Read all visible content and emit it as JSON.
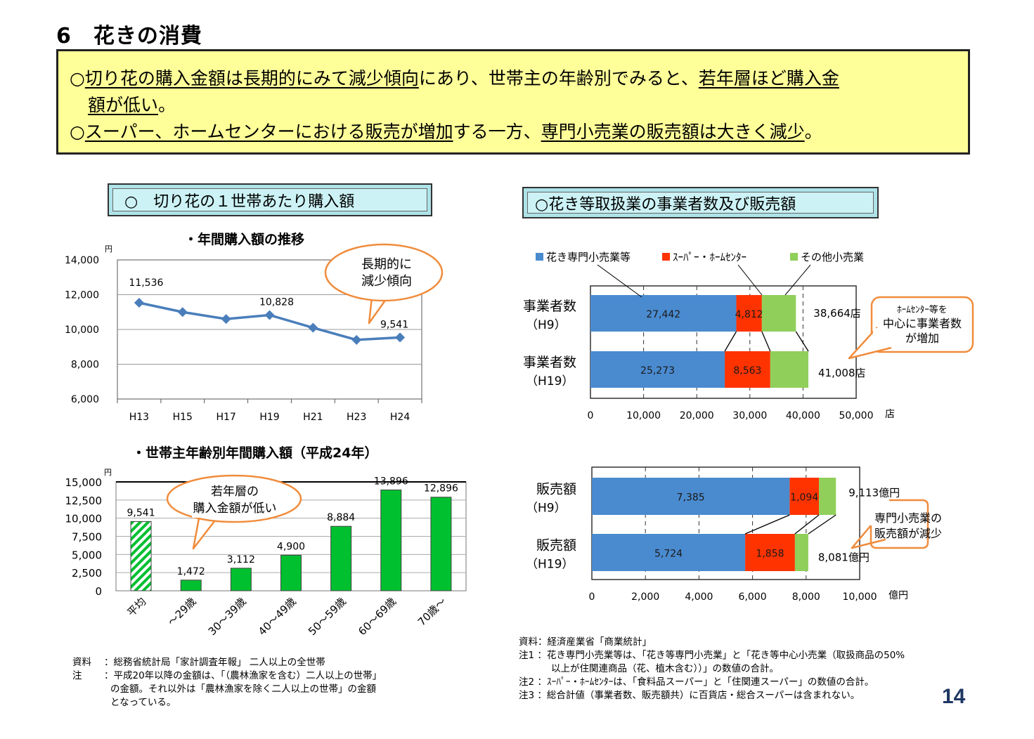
{
  "page": {
    "title": "6　花きの消費",
    "page_number": "14"
  },
  "summary": {
    "line1": [
      {
        "text": "○",
        "u": false
      },
      {
        "text": "切り花の購入金額は長期的にみて減少傾向",
        "u": true
      },
      {
        "text": "にあり、世帯主の年齢別でみると、",
        "u": false
      },
      {
        "text": "若年層ほど購入金",
        "u": true
      }
    ],
    "line2": [
      {
        "text": "額が低い",
        "u": true
      },
      {
        "text": "。",
        "u": false
      }
    ],
    "line3": [
      {
        "text": "○",
        "u": false
      },
      {
        "text": "スーパー、ホームセンターにおける販売が増加",
        "u": true
      },
      {
        "text": "する一方、",
        "u": false
      },
      {
        "text": "専門小売業の販売額は大きく減少",
        "u": true
      },
      {
        "text": "。",
        "u": false
      }
    ]
  },
  "left_section": {
    "heading": "○　切り花の１世帯あたり購入額",
    "source_label": "資料",
    "source_text": "：総務省統計局「家計調査年報」 二人以上の全世帯",
    "note_label": "注",
    "note_lines": [
      "：平成20年以降の金額は、「（農林漁家を含む）二人以上の世帯」",
      "の金額。それ以外は「農林漁家を除く二人以上の世帯」の金額",
      "となっている。"
    ]
  },
  "right_section": {
    "heading": "○花き等取扱業の事業者数及び販売額",
    "source_line": "資料：経済産業省「商業統計」",
    "notes": [
      "注1 ：花き専門小売業等は、「花き等専門小売業」と「花き等中心小売業（取扱商品の50%",
      "以上が住関連商品（花、植木含む））」の数値の合計。",
      "注2 ：ｽｰﾊﾟｰ・ﾎｰﾑｾﾝﾀｰは、「食料品スーパー」と「住関連スーパー」の数値の合計。",
      "注3 ：総合計値（事業者数、販売額共）に百貨店・総合スーパーは含まれない。"
    ]
  },
  "chart_data": [
    {
      "type": "line",
      "title": "・年間購入額の推移",
      "ylabel": "円",
      "categories": [
        "H13",
        "H15",
        "H17",
        "H19",
        "H21",
        "H23",
        "H24"
      ],
      "values": [
        11536,
        11000,
        10600,
        10828,
        10100,
        9400,
        9541
      ],
      "data_labels": {
        "0": "11,536",
        "3": "10,828",
        "6": "9,541"
      },
      "ylim": [
        6000,
        14000
      ],
      "yticks": [
        "6,000",
        "8,000",
        "10,000",
        "12,000",
        "14,000"
      ],
      "grid": true,
      "color": "#4a7ebb",
      "callout": [
        "長期的に",
        "減少傾向"
      ]
    },
    {
      "type": "bar",
      "title": "・世帯主年齢別年間購入額（平成24年）",
      "ylabel": "円",
      "categories": [
        "平均",
        "～29歳",
        "30～39歳",
        "40～49歳",
        "50～59歳",
        "60～69歳",
        "70歳～"
      ],
      "values": [
        9541,
        1472,
        3112,
        4900,
        8884,
        13896,
        12896
      ],
      "value_labels": [
        "9,541",
        "1,472",
        "3,112",
        "4,900",
        "8,884",
        "13,896",
        "12,896"
      ],
      "ylim": [
        0,
        15000
      ],
      "yticks": [
        "0",
        "2,500",
        "5,000",
        "7,500",
        "10,000",
        "12,500",
        "15,000"
      ],
      "grid": true,
      "color": "#00c030",
      "callout": [
        "若年層の",
        "購入金額が低い"
      ]
    },
    {
      "type": "bar",
      "orientation": "horizontal-stacked",
      "title": "事業者数",
      "legend": [
        "花き専門小売業等",
        "ｽｰﾊﾟｰ・ﾎｰﾑｾﾝﾀｰ",
        "その他小売業"
      ],
      "legend_position": "top",
      "colors": [
        "#4a8bd0",
        "#ff3300",
        "#8fcf5a"
      ],
      "categories": [
        [
          "事業者数",
          "（H9）"
        ],
        [
          "事業者数",
          "（H19）"
        ]
      ],
      "series": [
        {
          "name": "花き専門小売業等",
          "values": [
            27442,
            25273
          ],
          "labels": [
            "27,442",
            "25,273"
          ]
        },
        {
          "name": "ｽｰﾊﾟｰ・ﾎｰﾑｾﾝﾀｰ",
          "values": [
            4812,
            8563
          ],
          "labels": [
            "4,812",
            "8,563"
          ]
        },
        {
          "name": "その他小売業",
          "values": [
            6410,
            7172
          ],
          "labels": [
            "",
            ""
          ]
        }
      ],
      "totals": [
        "38,664店",
        "41,008店"
      ],
      "xlim": [
        0,
        50000
      ],
      "xticks": [
        "0",
        "10,000",
        "20,000",
        "30,000",
        "40,000",
        "50,000"
      ],
      "xunit": "店",
      "callout": [
        "ﾎｰﾑｾﾝﾀｰ等を",
        "中心に事業者数",
        "が増加"
      ]
    },
    {
      "type": "bar",
      "orientation": "horizontal-stacked",
      "title": "販売額",
      "colors": [
        "#4a8bd0",
        "#ff3300",
        "#8fcf5a"
      ],
      "categories": [
        [
          "販売額",
          "（H9）"
        ],
        [
          "販売額",
          "（H19）"
        ]
      ],
      "series": [
        {
          "name": "花き専門小売業等",
          "values": [
            7385,
            5724
          ],
          "labels": [
            "7,385",
            "5,724"
          ]
        },
        {
          "name": "ｽｰﾊﾟｰ・ﾎｰﾑｾﾝﾀｰ",
          "values": [
            1094,
            1858
          ],
          "labels": [
            "1,094",
            "1,858"
          ]
        },
        {
          "name": "その他小売業",
          "values": [
            634,
            499
          ],
          "labels": [
            "",
            ""
          ]
        }
      ],
      "totals": [
        "9,113億円",
        "8,081億円"
      ],
      "xlim": [
        0,
        10000
      ],
      "xticks": [
        "0",
        "2,000",
        "4,000",
        "6,000",
        "8,000",
        "10,000"
      ],
      "xunit": "億円",
      "callout": [
        "専門小売業の",
        "販売額が減少"
      ]
    }
  ]
}
